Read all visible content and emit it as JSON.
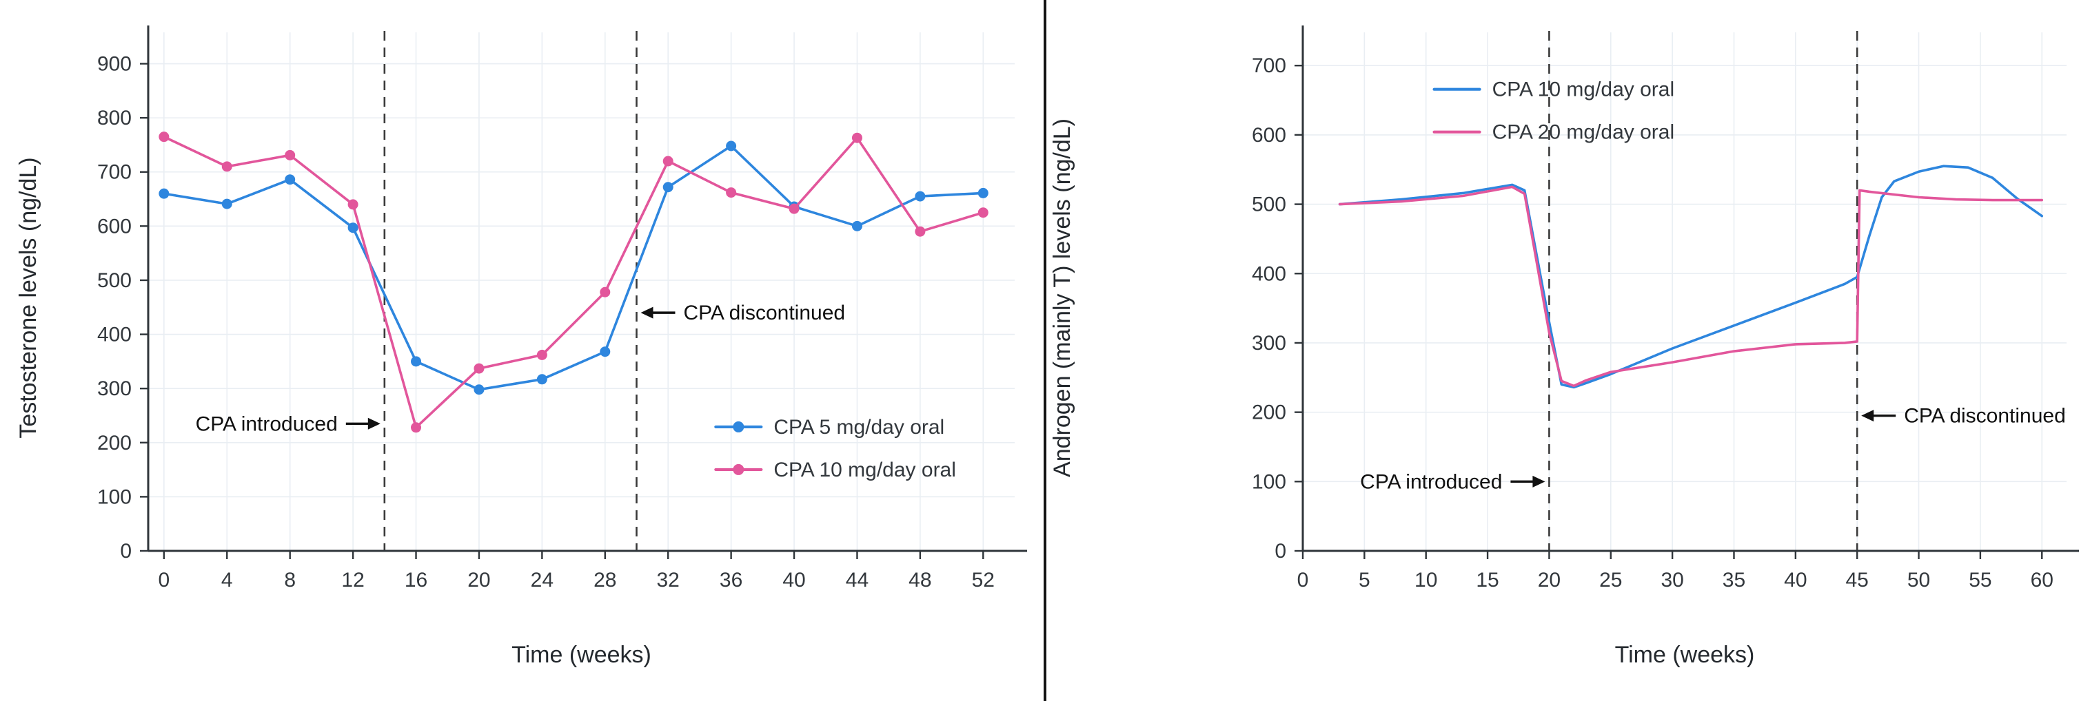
{
  "figure": {
    "background": "#ffffff",
    "divider_color": "#141414"
  },
  "theme": {
    "grid_color": "#e9eef3",
    "axis_color": "#2f353a",
    "dash_color": "#3a3a3a",
    "annotation_color": "#111111",
    "series_blue": "#2e86de",
    "series_pink": "#e2569b"
  },
  "chart_data": [
    {
      "type": "line",
      "title": "",
      "xlabel": "Time (weeks)",
      "ylabel": "Testosterone levels (ng/dL)",
      "xlim": [
        -1,
        54
      ],
      "ylim": [
        0,
        935
      ],
      "xticks": [
        0,
        4,
        8,
        12,
        16,
        20,
        24,
        28,
        32,
        36,
        40,
        44,
        48,
        52
      ],
      "yticks": [
        0,
        100,
        200,
        300,
        400,
        500,
        600,
        700,
        800,
        900
      ],
      "grid": true,
      "series": [
        {
          "name": "CPA 5 mg/day oral",
          "color": "#2e86de",
          "marker": "circle",
          "points": [
            [
              0,
              660
            ],
            [
              4,
              641
            ],
            [
              8,
              686
            ],
            [
              12,
              597
            ],
            [
              16,
              350
            ],
            [
              20,
              298
            ],
            [
              24,
              317
            ],
            [
              28,
              368
            ],
            [
              32,
              672
            ],
            [
              36,
              748
            ],
            [
              40,
              636
            ],
            [
              44,
              600
            ],
            [
              48,
              655
            ],
            [
              52,
              661
            ]
          ]
        },
        {
          "name": "CPA 10 mg/day oral",
          "color": "#e2569b",
          "marker": "circle",
          "points": [
            [
              0,
              765
            ],
            [
              4,
              710
            ],
            [
              8,
              731
            ],
            [
              12,
              640
            ],
            [
              16,
              228
            ],
            [
              20,
              337
            ],
            [
              24,
              362
            ],
            [
              28,
              478
            ],
            [
              32,
              720
            ],
            [
              36,
              662
            ],
            [
              40,
              632
            ],
            [
              44,
              763
            ],
            [
              48,
              590
            ],
            [
              52,
              625
            ]
          ]
        }
      ],
      "vlines": [
        {
          "x": 14,
          "style": "dashed"
        },
        {
          "x": 30,
          "style": "dashed"
        }
      ],
      "annotations": [
        {
          "text": "CPA introduced",
          "at_x": 14,
          "y": 235,
          "text_side": "left"
        },
        {
          "text": "CPA discontinued",
          "at_x": 30,
          "y": 440,
          "text_side": "right"
        }
      ],
      "legend": {
        "position": "inside",
        "fx": 0.655,
        "fy": 0.755
      }
    },
    {
      "type": "line",
      "title": "",
      "xlabel": "Time (weeks)",
      "ylabel": "Androgen (mainly T) levels (ng/dL)",
      "xlim": [
        0,
        62
      ],
      "ylim": [
        0,
        730
      ],
      "xticks": [
        0,
        5,
        10,
        15,
        20,
        25,
        30,
        35,
        40,
        45,
        50,
        55,
        60
      ],
      "yticks": [
        0,
        100,
        200,
        300,
        400,
        500,
        600,
        700
      ],
      "grid": true,
      "series": [
        {
          "name": "CPA 10 mg/day oral",
          "color": "#2e86de",
          "marker": "none",
          "points": [
            [
              3,
              500
            ],
            [
              8,
              507
            ],
            [
              13,
              516
            ],
            [
              17,
              528
            ],
            [
              18,
              520
            ],
            [
              20,
              330
            ],
            [
              21,
              240
            ],
            [
              22,
              236
            ],
            [
              23,
              242
            ],
            [
              25,
              255
            ],
            [
              30,
              292
            ],
            [
              35,
              325
            ],
            [
              40,
              358
            ],
            [
              44,
              385
            ],
            [
              45,
              395
            ],
            [
              46,
              455
            ],
            [
              47,
              510
            ],
            [
              48,
              533
            ],
            [
              50,
              547
            ],
            [
              52,
              555
            ],
            [
              54,
              553
            ],
            [
              56,
              538
            ],
            [
              58,
              508
            ],
            [
              60,
              483
            ]
          ]
        },
        {
          "name": "CPA 20 mg/day oral",
          "color": "#e2569b",
          "marker": "none",
          "points": [
            [
              3,
              500
            ],
            [
              8,
              504
            ],
            [
              13,
              512
            ],
            [
              17,
              525
            ],
            [
              18,
              515
            ],
            [
              20,
              315
            ],
            [
              21,
              245
            ],
            [
              22,
              238
            ],
            [
              23,
              246
            ],
            [
              25,
              258
            ],
            [
              30,
              272
            ],
            [
              35,
              288
            ],
            [
              40,
              298
            ],
            [
              44,
              300
            ],
            [
              45,
              302
            ],
            [
              45.2,
              520
            ],
            [
              46,
              518
            ],
            [
              48,
              514
            ],
            [
              50,
              510
            ],
            [
              53,
              507
            ],
            [
              56,
              506
            ],
            [
              60,
              506
            ]
          ]
        }
      ],
      "vlines": [
        {
          "x": 20,
          "style": "dashed"
        },
        {
          "x": 45,
          "style": "dashed"
        }
      ],
      "annotations": [
        {
          "text": "CPA introduced",
          "at_x": 20,
          "y": 100,
          "text_side": "left"
        },
        {
          "text": "CPA discontinued",
          "at_x": 45,
          "y": 195,
          "text_side": "right"
        }
      ],
      "legend": {
        "position": "inside",
        "fx": 0.172,
        "fy": 0.088
      }
    }
  ]
}
